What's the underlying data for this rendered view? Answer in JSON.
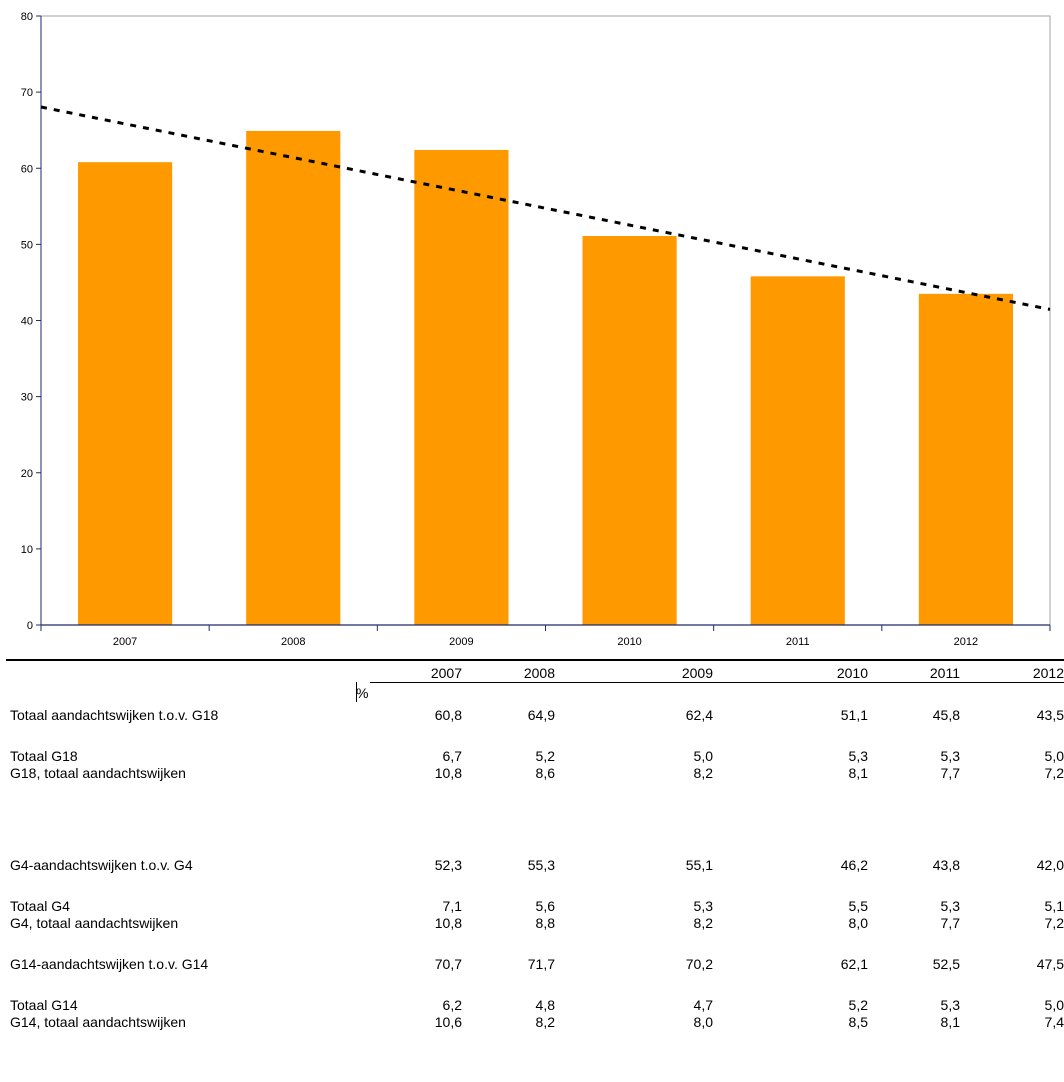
{
  "chart_data": {
    "type": "bar",
    "categories": [
      "2007",
      "2008",
      "2009",
      "2010",
      "2011",
      "2012"
    ],
    "values": [
      60.8,
      64.9,
      62.4,
      51.1,
      45.8,
      43.5
    ],
    "ylim": [
      0,
      80
    ],
    "yticks": [
      "0",
      "10",
      "20",
      "30",
      "40",
      "50",
      "60",
      "70",
      "80"
    ],
    "trendline": "linear",
    "grid": false,
    "colors": {
      "bar": "#ff9900",
      "trend": "#000000",
      "axis": "#1f2a6b"
    }
  },
  "table": {
    "years": [
      "2007",
      "2008",
      "2009",
      "2010",
      "2011",
      "2012"
    ],
    "unit": "%",
    "rows": [
      {
        "label": "Totaal aandachtswijken t.o.v. G18",
        "values": [
          "60,8",
          "64,9",
          "62,4",
          "51,1",
          "45,8",
          "43,5"
        ]
      },
      {
        "label": "Totaal G18",
        "values": [
          "6,7",
          "5,2",
          "5,0",
          "5,3",
          "5,3",
          "5,0"
        ]
      },
      {
        "label": "G18, totaal aandachtswijken",
        "values": [
          "10,8",
          "8,6",
          "8,2",
          "8,1",
          "7,7",
          "7,2"
        ]
      },
      {
        "label": "G4-aandachtswijken t.o.v. G4",
        "values": [
          "52,3",
          "55,3",
          "55,1",
          "46,2",
          "43,8",
          "42,0"
        ]
      },
      {
        "label": "Totaal G4",
        "values": [
          "7,1",
          "5,6",
          "5,3",
          "5,5",
          "5,3",
          "5,1"
        ]
      },
      {
        "label": "G4, totaal aandachtswijken",
        "values": [
          "10,8",
          "8,8",
          "8,2",
          "8,0",
          "7,7",
          "7,2"
        ]
      },
      {
        "label": "G14-aandachtswijken t.o.v. G14",
        "values": [
          "70,7",
          "71,7",
          "70,2",
          "62,1",
          "52,5",
          "47,5"
        ]
      },
      {
        "label": "Totaal G14",
        "values": [
          "6,2",
          "4,8",
          "4,7",
          "5,2",
          "5,3",
          "5,0"
        ]
      },
      {
        "label": "G14, totaal aandachtswijken",
        "values": [
          "10,6",
          "8,2",
          "8,0",
          "8,5",
          "8,1",
          "7,4"
        ]
      }
    ]
  }
}
